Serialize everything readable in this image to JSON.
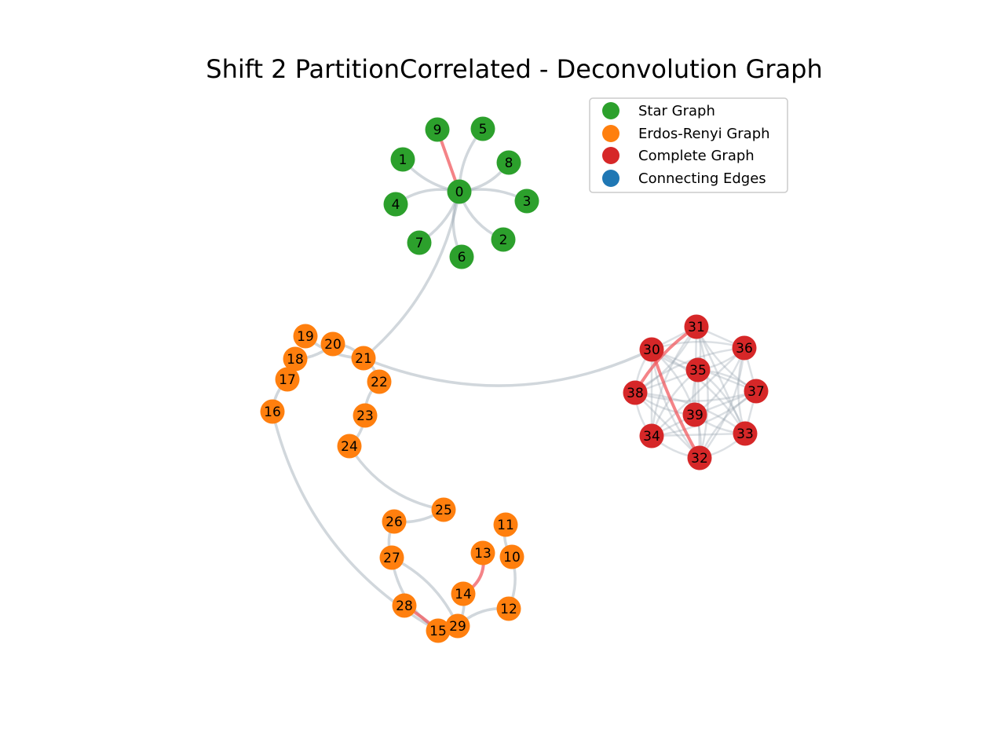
{
  "title": "Shift 2 PartitionCorrelated - Deconvolution Graph",
  "colors": {
    "star": "#2ca02c",
    "erdos": "#ff7f0e",
    "complete": "#d62728",
    "connecting": "#1f77b4",
    "edge": "#9aa7b1",
    "highlight": "#f05a5f"
  },
  "legend": [
    {
      "label": "Star Graph",
      "group": "star"
    },
    {
      "label": "Erdos-Renyi Graph",
      "group": "erdos"
    },
    {
      "label": "Complete Graph",
      "group": "complete"
    },
    {
      "label": "Connecting Edges",
      "group": "connecting"
    }
  ],
  "nodes": [
    {
      "id": "0",
      "group": "star"
    },
    {
      "id": "1",
      "group": "star"
    },
    {
      "id": "2",
      "group": "star"
    },
    {
      "id": "3",
      "group": "star"
    },
    {
      "id": "4",
      "group": "star"
    },
    {
      "id": "5",
      "group": "star"
    },
    {
      "id": "6",
      "group": "star"
    },
    {
      "id": "7",
      "group": "star"
    },
    {
      "id": "8",
      "group": "star"
    },
    {
      "id": "9",
      "group": "star"
    },
    {
      "id": "10",
      "group": "erdos"
    },
    {
      "id": "11",
      "group": "erdos"
    },
    {
      "id": "12",
      "group": "erdos"
    },
    {
      "id": "13",
      "group": "erdos"
    },
    {
      "id": "14",
      "group": "erdos"
    },
    {
      "id": "15",
      "group": "erdos"
    },
    {
      "id": "16",
      "group": "erdos"
    },
    {
      "id": "17",
      "group": "erdos"
    },
    {
      "id": "18",
      "group": "erdos"
    },
    {
      "id": "19",
      "group": "erdos"
    },
    {
      "id": "20",
      "group": "erdos"
    },
    {
      "id": "21",
      "group": "erdos"
    },
    {
      "id": "22",
      "group": "erdos"
    },
    {
      "id": "23",
      "group": "erdos"
    },
    {
      "id": "24",
      "group": "erdos"
    },
    {
      "id": "25",
      "group": "erdos"
    },
    {
      "id": "26",
      "group": "erdos"
    },
    {
      "id": "27",
      "group": "erdos"
    },
    {
      "id": "28",
      "group": "erdos"
    },
    {
      "id": "29",
      "group": "erdos"
    },
    {
      "id": "30",
      "group": "complete"
    },
    {
      "id": "31",
      "group": "complete"
    },
    {
      "id": "32",
      "group": "complete"
    },
    {
      "id": "33",
      "group": "complete"
    },
    {
      "id": "34",
      "group": "complete"
    },
    {
      "id": "35",
      "group": "complete"
    },
    {
      "id": "36",
      "group": "complete"
    },
    {
      "id": "37",
      "group": "complete"
    },
    {
      "id": "38",
      "group": "complete"
    },
    {
      "id": "39",
      "group": "complete"
    }
  ],
  "edges": [
    {
      "source": "0",
      "target": "1"
    },
    {
      "source": "0",
      "target": "2"
    },
    {
      "source": "0",
      "target": "3"
    },
    {
      "source": "0",
      "target": "4"
    },
    {
      "source": "0",
      "target": "5"
    },
    {
      "source": "0",
      "target": "6"
    },
    {
      "source": "0",
      "target": "7"
    },
    {
      "source": "0",
      "target": "8"
    },
    {
      "source": "0",
      "target": "21"
    },
    {
      "source": "21",
      "target": "30"
    },
    {
      "source": "21",
      "target": "19"
    },
    {
      "source": "21",
      "target": "20"
    },
    {
      "source": "20",
      "target": "18"
    },
    {
      "source": "18",
      "target": "17"
    },
    {
      "source": "21",
      "target": "22"
    },
    {
      "source": "22",
      "target": "23"
    },
    {
      "source": "23",
      "target": "24"
    },
    {
      "source": "24",
      "target": "25"
    },
    {
      "source": "25",
      "target": "26"
    },
    {
      "source": "26",
      "target": "27"
    },
    {
      "source": "27",
      "target": "29"
    },
    {
      "source": "16",
      "target": "15"
    },
    {
      "source": "16",
      "target": "17"
    },
    {
      "source": "11",
      "target": "10"
    },
    {
      "source": "10",
      "target": "12"
    },
    {
      "source": "12",
      "target": "29"
    },
    {
      "source": "14",
      "target": "29"
    },
    {
      "source": "27",
      "target": "15"
    }
  ],
  "highlight_edges": [
    {
      "source": "0",
      "target": "9"
    },
    {
      "source": "13",
      "target": "14"
    },
    {
      "source": "15",
      "target": "28"
    },
    {
      "source": "38",
      "target": "31"
    },
    {
      "source": "30",
      "target": "32"
    }
  ]
}
